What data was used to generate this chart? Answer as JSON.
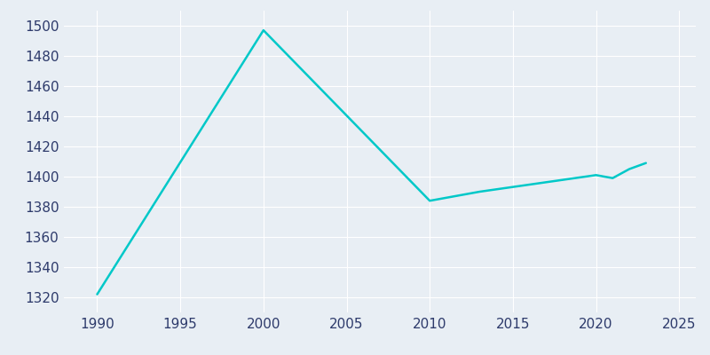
{
  "years": [
    1990,
    2000,
    2010,
    2013,
    2020,
    2021,
    2022,
    2023
  ],
  "population": [
    1322,
    1497,
    1384,
    1390,
    1401,
    1399,
    1405,
    1409
  ],
  "line_color": "#00C8C8",
  "bg_color": "#E8EEF4",
  "grid_color": "#FFFFFF",
  "text_color": "#2D3A6B",
  "xlim": [
    1988,
    2026
  ],
  "ylim": [
    1310,
    1510
  ],
  "yticks": [
    1320,
    1340,
    1360,
    1380,
    1400,
    1420,
    1440,
    1460,
    1480,
    1500
  ],
  "xticks": [
    1990,
    1995,
    2000,
    2005,
    2010,
    2015,
    2020,
    2025
  ],
  "linewidth": 1.8,
  "figsize": [
    8.0,
    4.0
  ],
  "dpi": 100
}
